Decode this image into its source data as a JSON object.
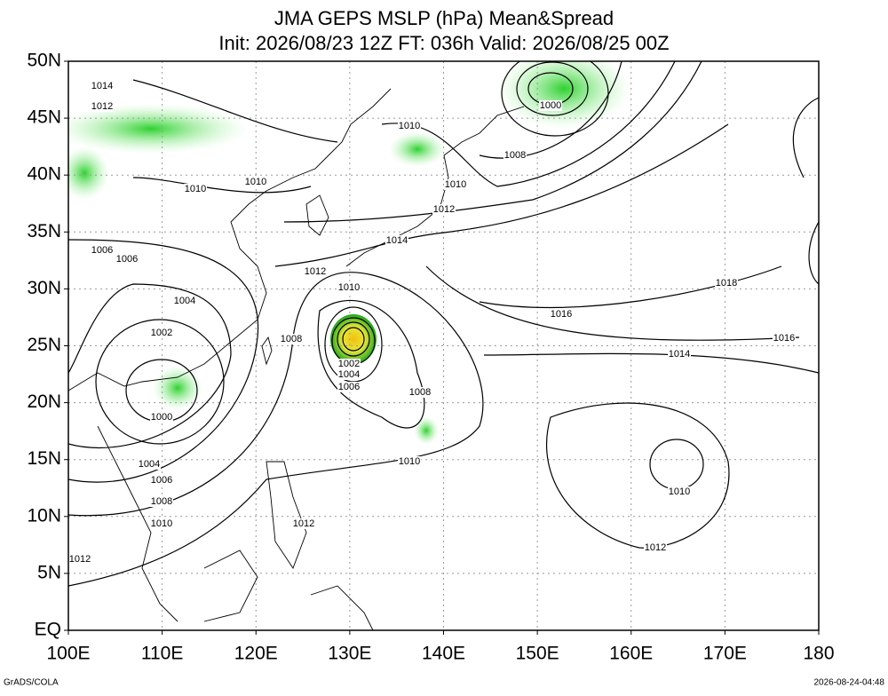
{
  "header": {
    "title": "JMA GEPS MSLP (hPa) Mean&Spread",
    "subtitle": "Init: 2026/08/23 12Z  FT: 036h  Valid: 2026/08/25 00Z"
  },
  "axes": {
    "x_labels": [
      "100E",
      "110E",
      "120E",
      "130E",
      "140E",
      "150E",
      "160E",
      "170E",
      "180"
    ],
    "y_labels": [
      "50N",
      "45N",
      "40N",
      "35N",
      "30N",
      "25N",
      "20N",
      "15N",
      "10N",
      "5N",
      "EQ"
    ]
  },
  "contour_labels": [
    "1014",
    "1012",
    "1010",
    "1010",
    "1006",
    "1006",
    "1004",
    "1002",
    "1000",
    "1004",
    "1006",
    "1008",
    "1010",
    "1012",
    "1012",
    "1010",
    "1008",
    "1010",
    "1008",
    "1010",
    "1012",
    "1014",
    "1000",
    "1018",
    "1016",
    "1016",
    "1014",
    "1002",
    "1004",
    "1006",
    "1008",
    "1010",
    "1012",
    "1010",
    "1012"
  ],
  "footer": {
    "left": "GrADS/COLA",
    "right": "2026-08-24-04:48"
  }
}
